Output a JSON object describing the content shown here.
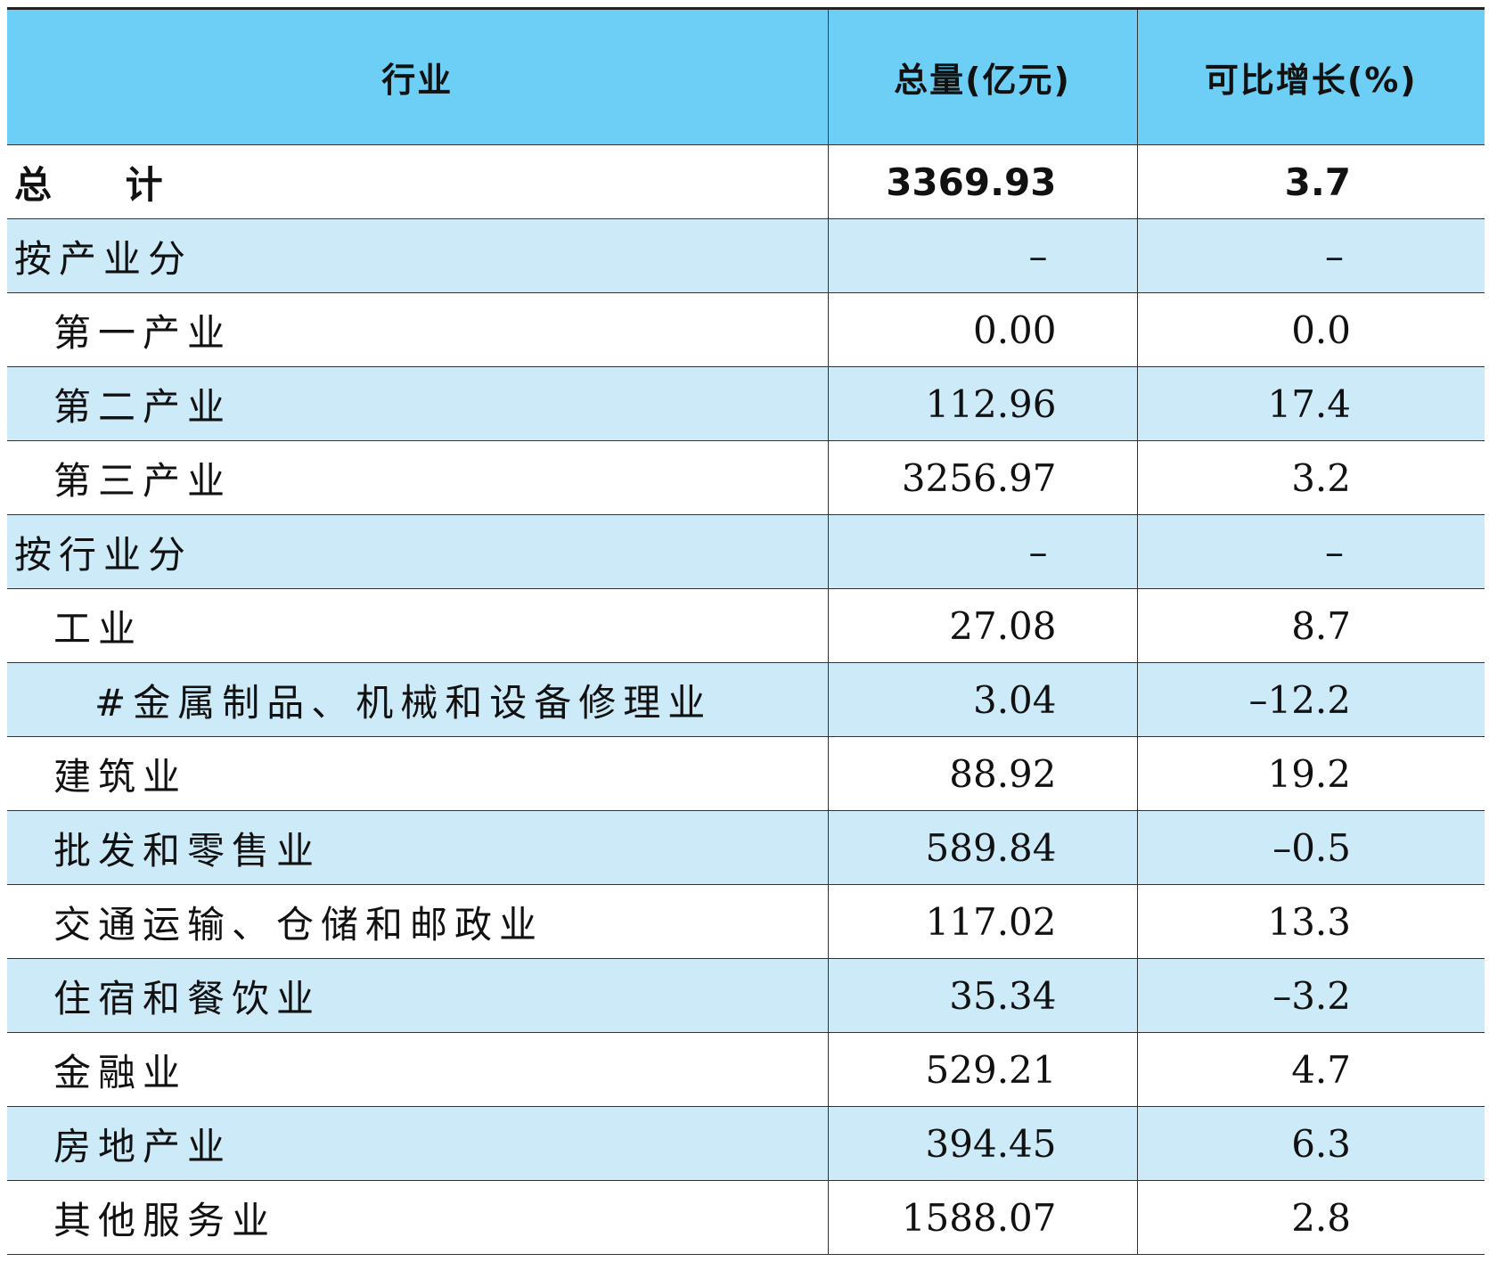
{
  "table": {
    "header": [
      "行业",
      "总量(亿元)",
      "可比增长(%)"
    ],
    "rows": [
      [
        "总 计",
        "3369.93",
        "3.7"
      ],
      [
        "按产业分",
        "–",
        "–"
      ],
      [
        "第一产业",
        "0.00",
        "0.0"
      ],
      [
        "第二产业",
        "112.96",
        "17.4"
      ],
      [
        "第三产业",
        "3256.97",
        "3.2"
      ],
      [
        "按行业分",
        "–",
        "–"
      ],
      [
        "工业",
        "27.08",
        "8.7"
      ],
      [
        "#金属制品、机械和设备修理业",
        "3.04",
        "–12.2"
      ],
      [
        "建筑业",
        "88.92",
        "19.2"
      ],
      [
        "批发和零售业",
        "589.84",
        "–0.5"
      ],
      [
        "交通运输、仓储和邮政业",
        "117.02",
        "13.3"
      ],
      [
        "住宿和餐饮业",
        "35.34",
        "–3.2"
      ],
      [
        "金融业",
        "529.21",
        "4.7"
      ],
      [
        "房地产业",
        "394.45",
        "6.3"
      ],
      [
        "其他服务业",
        "1588.07",
        "2.8"
      ]
    ]
  }
}
